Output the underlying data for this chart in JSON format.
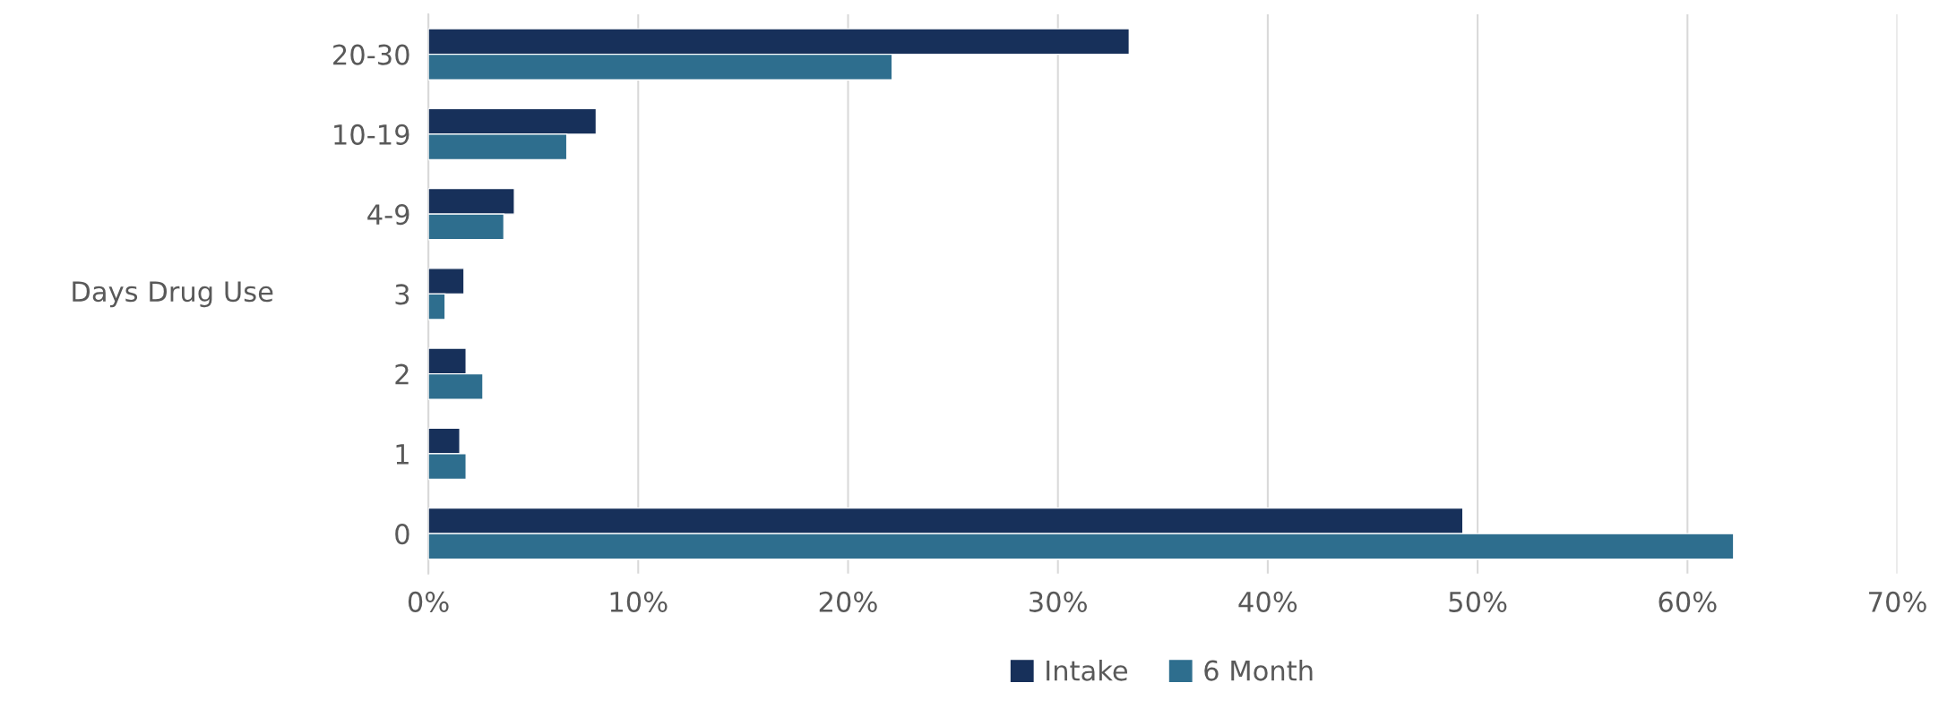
{
  "chart_data": {
    "type": "bar",
    "orientation": "horizontal",
    "ylabel": "Days Drug Use",
    "categories": [
      "20-30",
      "10-19",
      "4-9",
      "3",
      "2",
      "1",
      "0"
    ],
    "series": [
      {
        "name": "Intake",
        "color": "#17305a",
        "values": [
          33.4,
          8.0,
          4.1,
          1.7,
          1.8,
          1.5,
          49.3
        ]
      },
      {
        "name": "6 Month",
        "color": "#2e6e8e",
        "values": [
          22.1,
          6.6,
          3.6,
          0.8,
          2.6,
          1.8,
          62.2
        ]
      }
    ],
    "xlim": [
      0,
      70
    ],
    "xticks": [
      {
        "value": 0,
        "label": "0%"
      },
      {
        "value": 10,
        "label": "10%"
      },
      {
        "value": 20,
        "label": "20%"
      },
      {
        "value": 30,
        "label": "30%"
      },
      {
        "value": 40,
        "label": "40%"
      },
      {
        "value": 50,
        "label": "50%"
      },
      {
        "value": 60,
        "label": "60%"
      },
      {
        "value": 70,
        "label": "70%"
      }
    ],
    "grid": "x",
    "legend": "bottom"
  }
}
